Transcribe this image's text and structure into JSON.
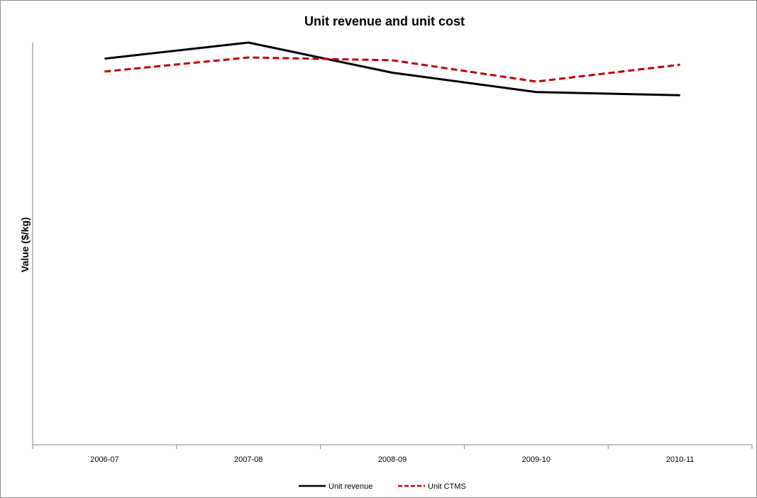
{
  "chart_data": {
    "type": "line",
    "title": "Unit revenue and unit cost",
    "xlabel": "",
    "ylabel": "Value ($/kg)",
    "categories": [
      "2006-07",
      "2007-08",
      "2008-09",
      "2009-10",
      "2010-11"
    ],
    "ylim": [
      0,
      100
    ],
    "y_ticks_visible": false,
    "grid": false,
    "legend_position": "bottom",
    "series": [
      {
        "name": "Unit revenue",
        "values": [
          96,
          100,
          92.5,
          87.7,
          86.9
        ],
        "color": "#000000",
        "style": "solid"
      },
      {
        "name": "Unit CTMS",
        "values": [
          92.8,
          96.3,
          95.6,
          90.3,
          94.5
        ],
        "color": "#c00000",
        "style": "dashed"
      }
    ]
  }
}
